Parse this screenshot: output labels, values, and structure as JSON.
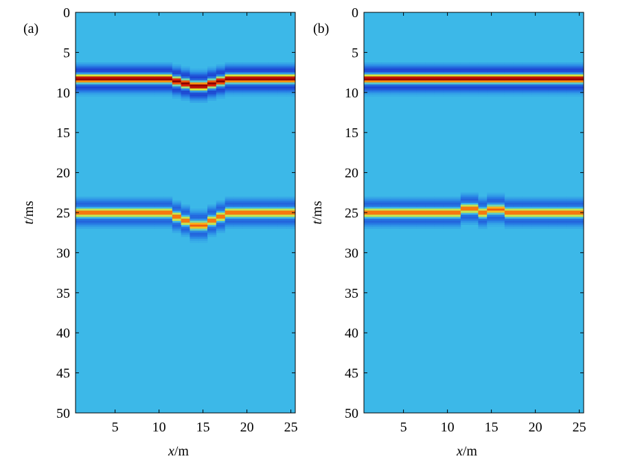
{
  "chart_data": [
    {
      "type": "heatmap",
      "panel_label": "(a)",
      "xlabel": {
        "var": "x",
        "unit": "/m"
      },
      "ylabel": {
        "var": "t",
        "unit": "/ms"
      },
      "xlim": [
        0.5,
        25.5
      ],
      "ylim": [
        0,
        50
      ],
      "y_reversed": true,
      "xticks": [
        5,
        10,
        15,
        20,
        25
      ],
      "yticks": [
        0,
        5,
        10,
        15,
        20,
        25,
        30,
        35,
        40,
        45,
        50
      ],
      "background_color": "#3cb8e8",
      "traces": [
        1,
        2,
        3,
        4,
        5,
        6,
        7,
        8,
        9,
        10,
        11,
        12,
        13,
        14,
        15,
        16,
        17,
        18,
        19,
        20,
        21,
        22,
        23,
        24,
        25
      ],
      "events": [
        {
          "amplitude": 1.0,
          "times_ms": [
            8.3,
            8.3,
            8.3,
            8.3,
            8.3,
            8.3,
            8.3,
            8.3,
            8.3,
            8.3,
            8.3,
            8.6,
            8.9,
            9.2,
            9.2,
            8.9,
            8.6,
            8.3,
            8.3,
            8.3,
            8.3,
            8.3,
            8.3,
            8.3,
            8.3
          ]
        },
        {
          "amplitude": 0.72,
          "times_ms": [
            25.0,
            25.0,
            25.0,
            25.0,
            25.0,
            25.0,
            25.0,
            25.0,
            25.0,
            25.0,
            25.0,
            25.5,
            26.0,
            26.6,
            26.6,
            26.0,
            25.5,
            25.0,
            25.0,
            25.0,
            25.0,
            25.0,
            25.0,
            25.0,
            25.0
          ]
        }
      ]
    },
    {
      "type": "heatmap",
      "panel_label": "(b)",
      "xlabel": {
        "var": "x",
        "unit": "/m"
      },
      "ylabel": {
        "var": "t",
        "unit": "/ms"
      },
      "xlim": [
        0.5,
        25.5
      ],
      "ylim": [
        0,
        50
      ],
      "y_reversed": true,
      "xticks": [
        5,
        10,
        15,
        20,
        25
      ],
      "yticks": [
        0,
        5,
        10,
        15,
        20,
        25,
        30,
        35,
        40,
        45,
        50
      ],
      "background_color": "#3cb8e8",
      "traces": [
        1,
        2,
        3,
        4,
        5,
        6,
        7,
        8,
        9,
        10,
        11,
        12,
        13,
        14,
        15,
        16,
        17,
        18,
        19,
        20,
        21,
        22,
        23,
        24,
        25
      ],
      "events": [
        {
          "amplitude": 1.0,
          "times_ms": [
            8.3,
            8.3,
            8.3,
            8.3,
            8.3,
            8.3,
            8.3,
            8.3,
            8.3,
            8.3,
            8.3,
            8.3,
            8.3,
            8.3,
            8.3,
            8.3,
            8.3,
            8.3,
            8.3,
            8.3,
            8.3,
            8.3,
            8.3,
            8.3,
            8.3
          ]
        },
        {
          "amplitude": 0.72,
          "times_ms": [
            25.0,
            25.0,
            25.0,
            25.0,
            25.0,
            25.0,
            25.0,
            25.0,
            25.0,
            25.0,
            25.0,
            24.5,
            24.5,
            25.0,
            24.6,
            24.6,
            25.0,
            25.0,
            25.0,
            25.0,
            25.0,
            25.0,
            25.0,
            25.0,
            25.0
          ]
        }
      ]
    }
  ]
}
